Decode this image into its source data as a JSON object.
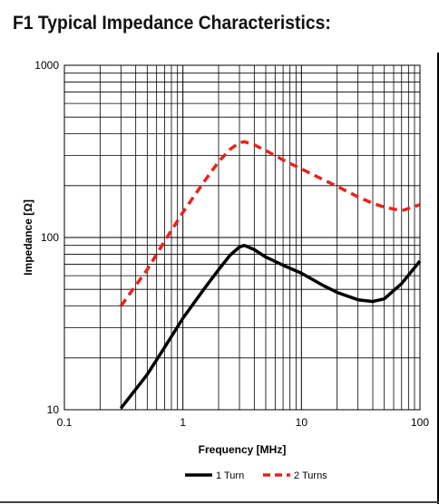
{
  "page": {
    "title": "F1 Typical Impedance Characteristics:"
  },
  "chart_data": {
    "type": "line",
    "xlabel": "Frequency [MHz]",
    "ylabel": "Impedance [Ω]",
    "x_scale": "log",
    "y_scale": "log",
    "xlim": [
      0.1,
      100
    ],
    "ylim": [
      10,
      1000
    ],
    "grid": true,
    "x_ticks": [
      {
        "value": 0.1,
        "label": "0.1"
      },
      {
        "value": 1,
        "label": "1"
      },
      {
        "value": 10,
        "label": "10"
      },
      {
        "value": 100,
        "label": "100"
      }
    ],
    "y_ticks": [
      {
        "value": 10,
        "label": "10"
      },
      {
        "value": 100,
        "label": "100"
      },
      {
        "value": 1000,
        "label": "1000"
      }
    ],
    "legend_position": "bottom",
    "series": [
      {
        "name": "1 Turn",
        "color": "#000000",
        "dash": "solid",
        "points": [
          [
            0.3,
            10.2
          ],
          [
            0.5,
            16
          ],
          [
            0.7,
            23
          ],
          [
            1.0,
            34
          ],
          [
            1.5,
            50
          ],
          [
            2.0,
            65
          ],
          [
            2.5,
            79
          ],
          [
            3.0,
            88
          ],
          [
            3.3,
            90
          ],
          [
            4.0,
            85
          ],
          [
            5.0,
            77
          ],
          [
            7.0,
            69
          ],
          [
            10,
            62
          ],
          [
            15,
            53
          ],
          [
            20,
            48
          ],
          [
            30,
            43.5
          ],
          [
            40,
            42.5
          ],
          [
            50,
            44
          ],
          [
            70,
            54
          ],
          [
            100,
            73
          ]
        ]
      },
      {
        "name": "2 Turns",
        "color": "#e8231d",
        "dash": "dashed",
        "points": [
          [
            0.3,
            40
          ],
          [
            0.5,
            65
          ],
          [
            0.7,
            95
          ],
          [
            1.0,
            140
          ],
          [
            1.5,
            210
          ],
          [
            2.0,
            275
          ],
          [
            2.5,
            325
          ],
          [
            3.0,
            355
          ],
          [
            3.3,
            360
          ],
          [
            4.0,
            345
          ],
          [
            5.0,
            320
          ],
          [
            7.0,
            282
          ],
          [
            10,
            250
          ],
          [
            15,
            218
          ],
          [
            20,
            198
          ],
          [
            30,
            172
          ],
          [
            40,
            158
          ],
          [
            50,
            150
          ],
          [
            70,
            143
          ],
          [
            100,
            155
          ]
        ]
      }
    ]
  }
}
